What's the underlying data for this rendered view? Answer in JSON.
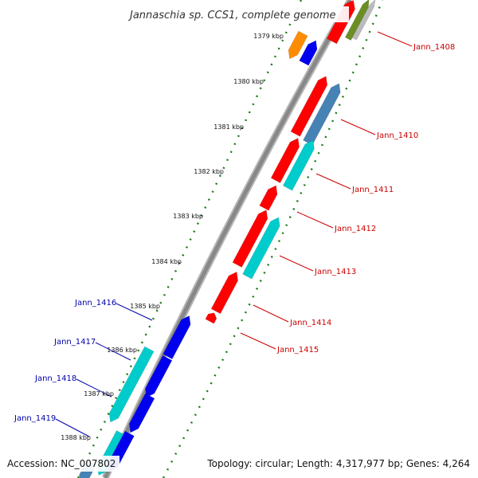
{
  "title": "Jannaschia sp. CCS1, complete genome",
  "footer": {
    "accession": "Accession: NC_007802",
    "summary": "Topology: circular; Length: 4,317,977 bp; Genes: 4,264"
  },
  "tick_labels": [
    "1379 kbp",
    "1380 kbp",
    "1381 kbp",
    "1382 kbp",
    "1383 kbp",
    "1384 kbp",
    "1385 kbp",
    "1386 kbp",
    "1387 kbp",
    "1388 kbp"
  ],
  "gene_labels_forward": [
    "Jann_1408",
    "Jann_1410",
    "Jann_1411",
    "Jann_1412",
    "Jann_1413",
    "Jann_1414",
    "Jann_1415"
  ],
  "gene_labels_reverse": [
    "Jann_1416",
    "Jann_1417",
    "Jann_1418",
    "Jann_1419"
  ],
  "colors": {
    "forward_label": "#cc0000",
    "reverse_label": "#0000aa",
    "cds_red": "#ff0000",
    "cds_blue": "#0000ee",
    "cds_cyan": "#00cccc",
    "cds_steelblue": "#4682b4",
    "cds_orange": "#ff8c00",
    "cds_olive": "#6b8e23",
    "cds_grey": "#bbbbbb",
    "backbone": "#888888",
    "tick_marks": "#1a7a1a"
  }
}
